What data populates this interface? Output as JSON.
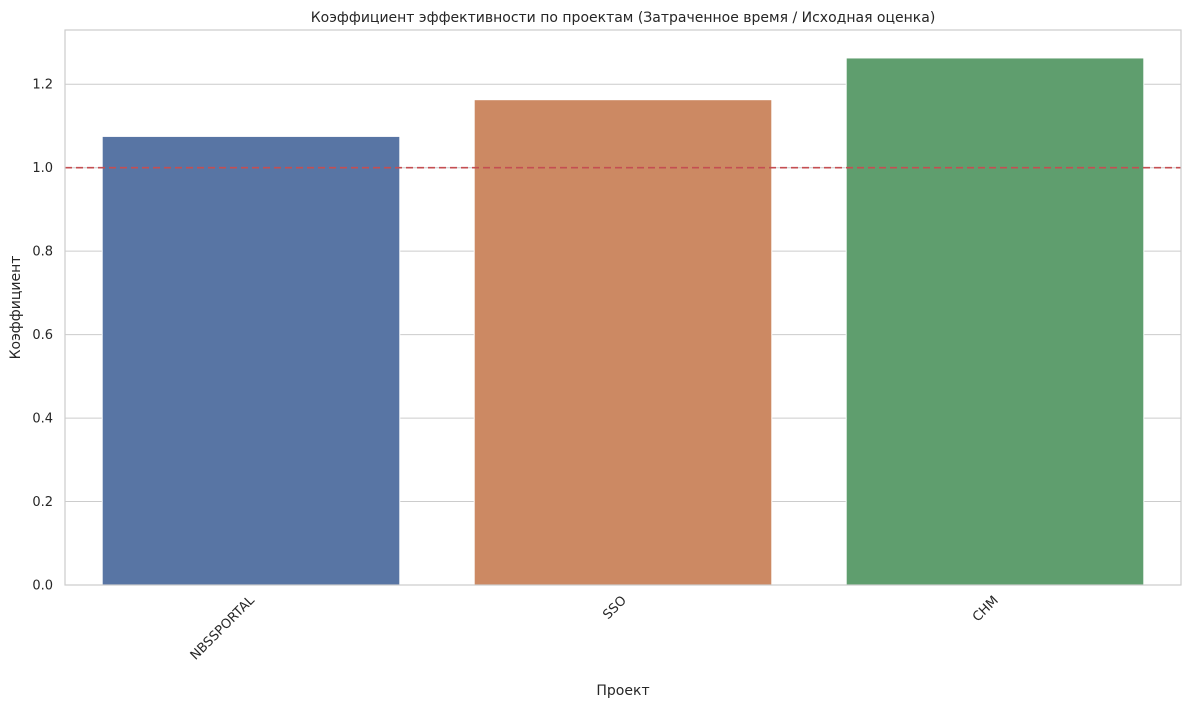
{
  "chart_data": {
    "type": "bar",
    "title": "Коэффициент эффективности по проектам (Затраченное время / Исходная оценка)",
    "xlabel": "Проект",
    "ylabel": "Коэффициент",
    "categories": [
      "NBSSPORTAL",
      "SSO",
      "CHM"
    ],
    "values": [
      1.075,
      1.163,
      1.263
    ],
    "colors": [
      "#5875a4",
      "#cc8963",
      "#5f9e6e"
    ],
    "ylim": [
      0,
      1.33
    ],
    "yticks": [
      "0.0",
      "0.2",
      "0.4",
      "0.6",
      "0.8",
      "1.0",
      "1.2"
    ],
    "reference_line": {
      "y": 1.0,
      "color": "#c44e52",
      "style": "dashed"
    },
    "grid": "horizontal",
    "xtick_rotation": "45 degrees"
  }
}
